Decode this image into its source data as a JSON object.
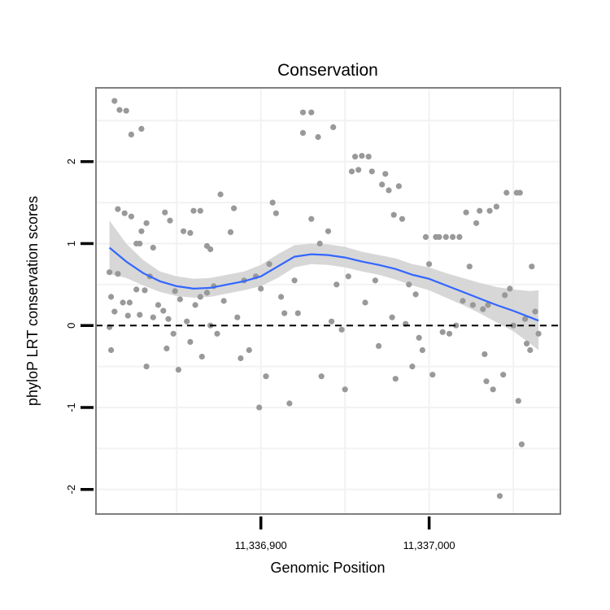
{
  "chart_data": {
    "type": "scatter",
    "title": "Conservation",
    "xlabel": "Genomic Position",
    "ylabel": "phyloP LRT conservation scores",
    "xlim": [
      11336802,
      11337078
    ],
    "ylim": [
      -2.3,
      2.9
    ],
    "x_ticks": [
      {
        "value": 11336900,
        "label": "11,336,900"
      },
      {
        "value": 11337000,
        "label": "11,337,000"
      }
    ],
    "y_ticks": [
      {
        "value": -2,
        "label": "-2"
      },
      {
        "value": -1,
        "label": "-1"
      },
      {
        "value": 0,
        "label": "0"
      },
      {
        "value": 1,
        "label": "1"
      },
      {
        "value": 2,
        "label": "2"
      }
    ],
    "reference_line": {
      "y": 0,
      "style": "dashed",
      "color": "#000000"
    },
    "grid": true,
    "colors": {
      "points": "#999999",
      "smooth": "#3366FF",
      "ribbon": "#D3D3D3",
      "panel_border": "#7F7F7F",
      "grid": "#F2F2F2"
    },
    "points": [
      {
        "x": 11336813,
        "y": 2.74
      },
      {
        "x": 11336816,
        "y": 2.63
      },
      {
        "x": 11336820,
        "y": 2.62
      },
      {
        "x": 11336823,
        "y": 2.33
      },
      {
        "x": 11336829,
        "y": 2.4
      },
      {
        "x": 11336815,
        "y": 1.42
      },
      {
        "x": 11336819,
        "y": 1.37
      },
      {
        "x": 11336823,
        "y": 1.33
      },
      {
        "x": 11336826,
        "y": 1.0
      },
      {
        "x": 11336828,
        "y": 1.0
      },
      {
        "x": 11336829,
        "y": 1.15
      },
      {
        "x": 11336832,
        "y": 1.25
      },
      {
        "x": 11336836,
        "y": 0.95
      },
      {
        "x": 11336843,
        "y": 1.38
      },
      {
        "x": 11336846,
        "y": 1.28
      },
      {
        "x": 11336810,
        "y": 0.65
      },
      {
        "x": 11336811,
        "y": 0.35
      },
      {
        "x": 11336813,
        "y": 0.17
      },
      {
        "x": 11336815,
        "y": 0.63
      },
      {
        "x": 11336818,
        "y": 0.28
      },
      {
        "x": 11336821,
        "y": 0.12
      },
      {
        "x": 11336822,
        "y": 0.28
      },
      {
        "x": 11336826,
        "y": 0.44
      },
      {
        "x": 11336828,
        "y": 0.13
      },
      {
        "x": 11336831,
        "y": 0.43
      },
      {
        "x": 11336834,
        "y": 0.6
      },
      {
        "x": 11336836,
        "y": 0.1
      },
      {
        "x": 11336839,
        "y": 0.25
      },
      {
        "x": 11336842,
        "y": 0.18
      },
      {
        "x": 11336845,
        "y": 0.08
      },
      {
        "x": 11336849,
        "y": 0.42
      },
      {
        "x": 11336852,
        "y": 0.32
      },
      {
        "x": 11336810,
        "y": -0.02
      },
      {
        "x": 11336811,
        "y": -0.3
      },
      {
        "x": 11336832,
        "y": -0.5
      },
      {
        "x": 11336844,
        "y": -0.28
      },
      {
        "x": 11336848,
        "y": -0.1
      },
      {
        "x": 11336851,
        "y": -0.54
      },
      {
        "x": 11336854,
        "y": 1.15
      },
      {
        "x": 11336858,
        "y": 1.13
      },
      {
        "x": 11336860,
        "y": 1.4
      },
      {
        "x": 11336864,
        "y": 1.4
      },
      {
        "x": 11336868,
        "y": 0.97
      },
      {
        "x": 11336870,
        "y": 0.93
      },
      {
        "x": 11336876,
        "y": 1.6
      },
      {
        "x": 11336856,
        "y": 0.05
      },
      {
        "x": 11336858,
        "y": -0.2
      },
      {
        "x": 11336861,
        "y": 0.25
      },
      {
        "x": 11336864,
        "y": 0.35
      },
      {
        "x": 11336865,
        "y": -0.38
      },
      {
        "x": 11336868,
        "y": 0.4
      },
      {
        "x": 11336870,
        "y": 0.0
      },
      {
        "x": 11336872,
        "y": 0.48
      },
      {
        "x": 11336874,
        "y": -0.1
      },
      {
        "x": 11336878,
        "y": 0.3
      },
      {
        "x": 11336882,
        "y": 1.14
      },
      {
        "x": 11336884,
        "y": 1.43
      },
      {
        "x": 11336886,
        "y": 0.1
      },
      {
        "x": 11336888,
        "y": -0.4
      },
      {
        "x": 11336890,
        "y": 0.55
      },
      {
        "x": 11336893,
        "y": -0.3
      },
      {
        "x": 11336897,
        "y": 0.6
      },
      {
        "x": 11336899,
        "y": -1.0
      },
      {
        "x": 11336900,
        "y": 0.45
      },
      {
        "x": 11336903,
        "y": -0.62
      },
      {
        "x": 11336905,
        "y": 0.75
      },
      {
        "x": 11336907,
        "y": 1.5
      },
      {
        "x": 11336909,
        "y": 1.37
      },
      {
        "x": 11336912,
        "y": 0.35
      },
      {
        "x": 11336914,
        "y": 0.15
      },
      {
        "x": 11336917,
        "y": -0.95
      },
      {
        "x": 11336920,
        "y": 0.55
      },
      {
        "x": 11336922,
        "y": 0.15
      },
      {
        "x": 11336925,
        "y": 2.6
      },
      {
        "x": 11336925,
        "y": 2.35
      },
      {
        "x": 11336930,
        "y": 2.6
      },
      {
        "x": 11336930,
        "y": 1.3
      },
      {
        "x": 11336934,
        "y": 2.3
      },
      {
        "x": 11336935,
        "y": 1.0
      },
      {
        "x": 11336936,
        "y": -0.62
      },
      {
        "x": 11336940,
        "y": 1.15
      },
      {
        "x": 11336942,
        "y": 0.05
      },
      {
        "x": 11336943,
        "y": 2.42
      },
      {
        "x": 11336945,
        "y": 0.5
      },
      {
        "x": 11336948,
        "y": -0.05
      },
      {
        "x": 11336950,
        "y": -0.78
      },
      {
        "x": 11336952,
        "y": 0.6
      },
      {
        "x": 11336954,
        "y": 1.88
      },
      {
        "x": 11336956,
        "y": 2.06
      },
      {
        "x": 11336958,
        "y": 1.9
      },
      {
        "x": 11336960,
        "y": 2.07
      },
      {
        "x": 11336962,
        "y": 0.28
      },
      {
        "x": 11336964,
        "y": 2.06
      },
      {
        "x": 11336966,
        "y": 1.88
      },
      {
        "x": 11336968,
        "y": 0.55
      },
      {
        "x": 11336970,
        "y": -0.25
      },
      {
        "x": 11336972,
        "y": 1.72
      },
      {
        "x": 11336974,
        "y": 1.85
      },
      {
        "x": 11336976,
        "y": 1.65
      },
      {
        "x": 11336978,
        "y": 0.1
      },
      {
        "x": 11336979,
        "y": 1.35
      },
      {
        "x": 11336980,
        "y": -0.65
      },
      {
        "x": 11336982,
        "y": 1.7
      },
      {
        "x": 11336984,
        "y": 1.3
      },
      {
        "x": 11336986,
        "y": 0.02
      },
      {
        "x": 11336988,
        "y": 0.5
      },
      {
        "x": 11336990,
        "y": -0.5
      },
      {
        "x": 11336992,
        "y": 0.38
      },
      {
        "x": 11336994,
        "y": -0.15
      },
      {
        "x": 11336996,
        "y": -0.3
      },
      {
        "x": 11336998,
        "y": 1.08
      },
      {
        "x": 11337000,
        "y": 0.75
      },
      {
        "x": 11337002,
        "y": -0.6
      },
      {
        "x": 11337004,
        "y": 1.08
      },
      {
        "x": 11337006,
        "y": 1.08
      },
      {
        "x": 11337008,
        "y": -0.08
      },
      {
        "x": 11337010,
        "y": 1.08
      },
      {
        "x": 11337012,
        "y": -0.1
      },
      {
        "x": 11337014,
        "y": 1.08
      },
      {
        "x": 11337016,
        "y": 0.0
      },
      {
        "x": 11337018,
        "y": 1.08
      },
      {
        "x": 11337020,
        "y": 0.3
      },
      {
        "x": 11337022,
        "y": 1.38
      },
      {
        "x": 11337024,
        "y": 0.72
      },
      {
        "x": 11337026,
        "y": 0.25
      },
      {
        "x": 11337028,
        "y": 1.25
      },
      {
        "x": 11337030,
        "y": 1.4
      },
      {
        "x": 11337032,
        "y": 0.2
      },
      {
        "x": 11337033,
        "y": -0.35
      },
      {
        "x": 11337034,
        "y": -0.68
      },
      {
        "x": 11337036,
        "y": 1.4
      },
      {
        "x": 11337038,
        "y": -0.78
      },
      {
        "x": 11337040,
        "y": 1.45
      },
      {
        "x": 11337042,
        "y": -2.08
      },
      {
        "x": 11337044,
        "y": -0.6
      },
      {
        "x": 11337046,
        "y": 1.62
      },
      {
        "x": 11337048,
        "y": 0.45
      },
      {
        "x": 11337050,
        "y": 0.0
      },
      {
        "x": 11337052,
        "y": 1.62
      },
      {
        "x": 11337053,
        "y": -0.92
      },
      {
        "x": 11337054,
        "y": 1.62
      },
      {
        "x": 11337055,
        "y": -1.45
      },
      {
        "x": 11337057,
        "y": 0.08
      },
      {
        "x": 11337058,
        "y": -0.22
      },
      {
        "x": 11337060,
        "y": -0.3
      },
      {
        "x": 11337061,
        "y": 0.72
      },
      {
        "x": 11337063,
        "y": 0.17
      },
      {
        "x": 11337065,
        "y": -0.1
      },
      {
        "x": 11337045,
        "y": 0.37
      },
      {
        "x": 11337035,
        "y": 0.25
      }
    ],
    "smooth_line": [
      {
        "x": 11336810,
        "y": 0.95
      },
      {
        "x": 11336820,
        "y": 0.78
      },
      {
        "x": 11336830,
        "y": 0.64
      },
      {
        "x": 11336840,
        "y": 0.54
      },
      {
        "x": 11336850,
        "y": 0.48
      },
      {
        "x": 11336860,
        "y": 0.45
      },
      {
        "x": 11336870,
        "y": 0.46
      },
      {
        "x": 11336880,
        "y": 0.5
      },
      {
        "x": 11336890,
        "y": 0.54
      },
      {
        "x": 11336900,
        "y": 0.6
      },
      {
        "x": 11336910,
        "y": 0.72
      },
      {
        "x": 11336920,
        "y": 0.84
      },
      {
        "x": 11336930,
        "y": 0.87
      },
      {
        "x": 11336940,
        "y": 0.86
      },
      {
        "x": 11336950,
        "y": 0.83
      },
      {
        "x": 11336960,
        "y": 0.78
      },
      {
        "x": 11336970,
        "y": 0.74
      },
      {
        "x": 11336980,
        "y": 0.69
      },
      {
        "x": 11336990,
        "y": 0.62
      },
      {
        "x": 11337000,
        "y": 0.57
      },
      {
        "x": 11337010,
        "y": 0.49
      },
      {
        "x": 11337020,
        "y": 0.41
      },
      {
        "x": 11337030,
        "y": 0.33
      },
      {
        "x": 11337040,
        "y": 0.25
      },
      {
        "x": 11337050,
        "y": 0.18
      },
      {
        "x": 11337060,
        "y": 0.1
      },
      {
        "x": 11337065,
        "y": 0.06
      }
    ],
    "ribbon": [
      {
        "x": 11336810,
        "lo": 0.63,
        "hi": 1.28
      },
      {
        "x": 11336820,
        "lo": 0.58,
        "hi": 1.0
      },
      {
        "x": 11336830,
        "lo": 0.49,
        "hi": 0.8
      },
      {
        "x": 11336840,
        "lo": 0.41,
        "hi": 0.66
      },
      {
        "x": 11336850,
        "lo": 0.36,
        "hi": 0.6
      },
      {
        "x": 11336860,
        "lo": 0.34,
        "hi": 0.57
      },
      {
        "x": 11336870,
        "lo": 0.35,
        "hi": 0.58
      },
      {
        "x": 11336880,
        "lo": 0.39,
        "hi": 0.62
      },
      {
        "x": 11336890,
        "lo": 0.43,
        "hi": 0.66
      },
      {
        "x": 11336900,
        "lo": 0.48,
        "hi": 0.74
      },
      {
        "x": 11336910,
        "lo": 0.58,
        "hi": 0.87
      },
      {
        "x": 11336920,
        "lo": 0.71,
        "hi": 0.98
      },
      {
        "x": 11336930,
        "lo": 0.75,
        "hi": 1.0
      },
      {
        "x": 11336940,
        "lo": 0.74,
        "hi": 0.99
      },
      {
        "x": 11336950,
        "lo": 0.71,
        "hi": 0.96
      },
      {
        "x": 11336960,
        "lo": 0.66,
        "hi": 0.9
      },
      {
        "x": 11336970,
        "lo": 0.62,
        "hi": 0.86
      },
      {
        "x": 11336980,
        "lo": 0.56,
        "hi": 0.82
      },
      {
        "x": 11336990,
        "lo": 0.49,
        "hi": 0.75
      },
      {
        "x": 11337000,
        "lo": 0.43,
        "hi": 0.71
      },
      {
        "x": 11337010,
        "lo": 0.34,
        "hi": 0.64
      },
      {
        "x": 11337020,
        "lo": 0.25,
        "hi": 0.58
      },
      {
        "x": 11337030,
        "lo": 0.15,
        "hi": 0.52
      },
      {
        "x": 11337040,
        "lo": 0.04,
        "hi": 0.47
      },
      {
        "x": 11337050,
        "lo": -0.07,
        "hi": 0.44
      },
      {
        "x": 11337060,
        "lo": -0.22,
        "hi": 0.42
      },
      {
        "x": 11337065,
        "lo": -0.3,
        "hi": 0.43
      }
    ]
  }
}
